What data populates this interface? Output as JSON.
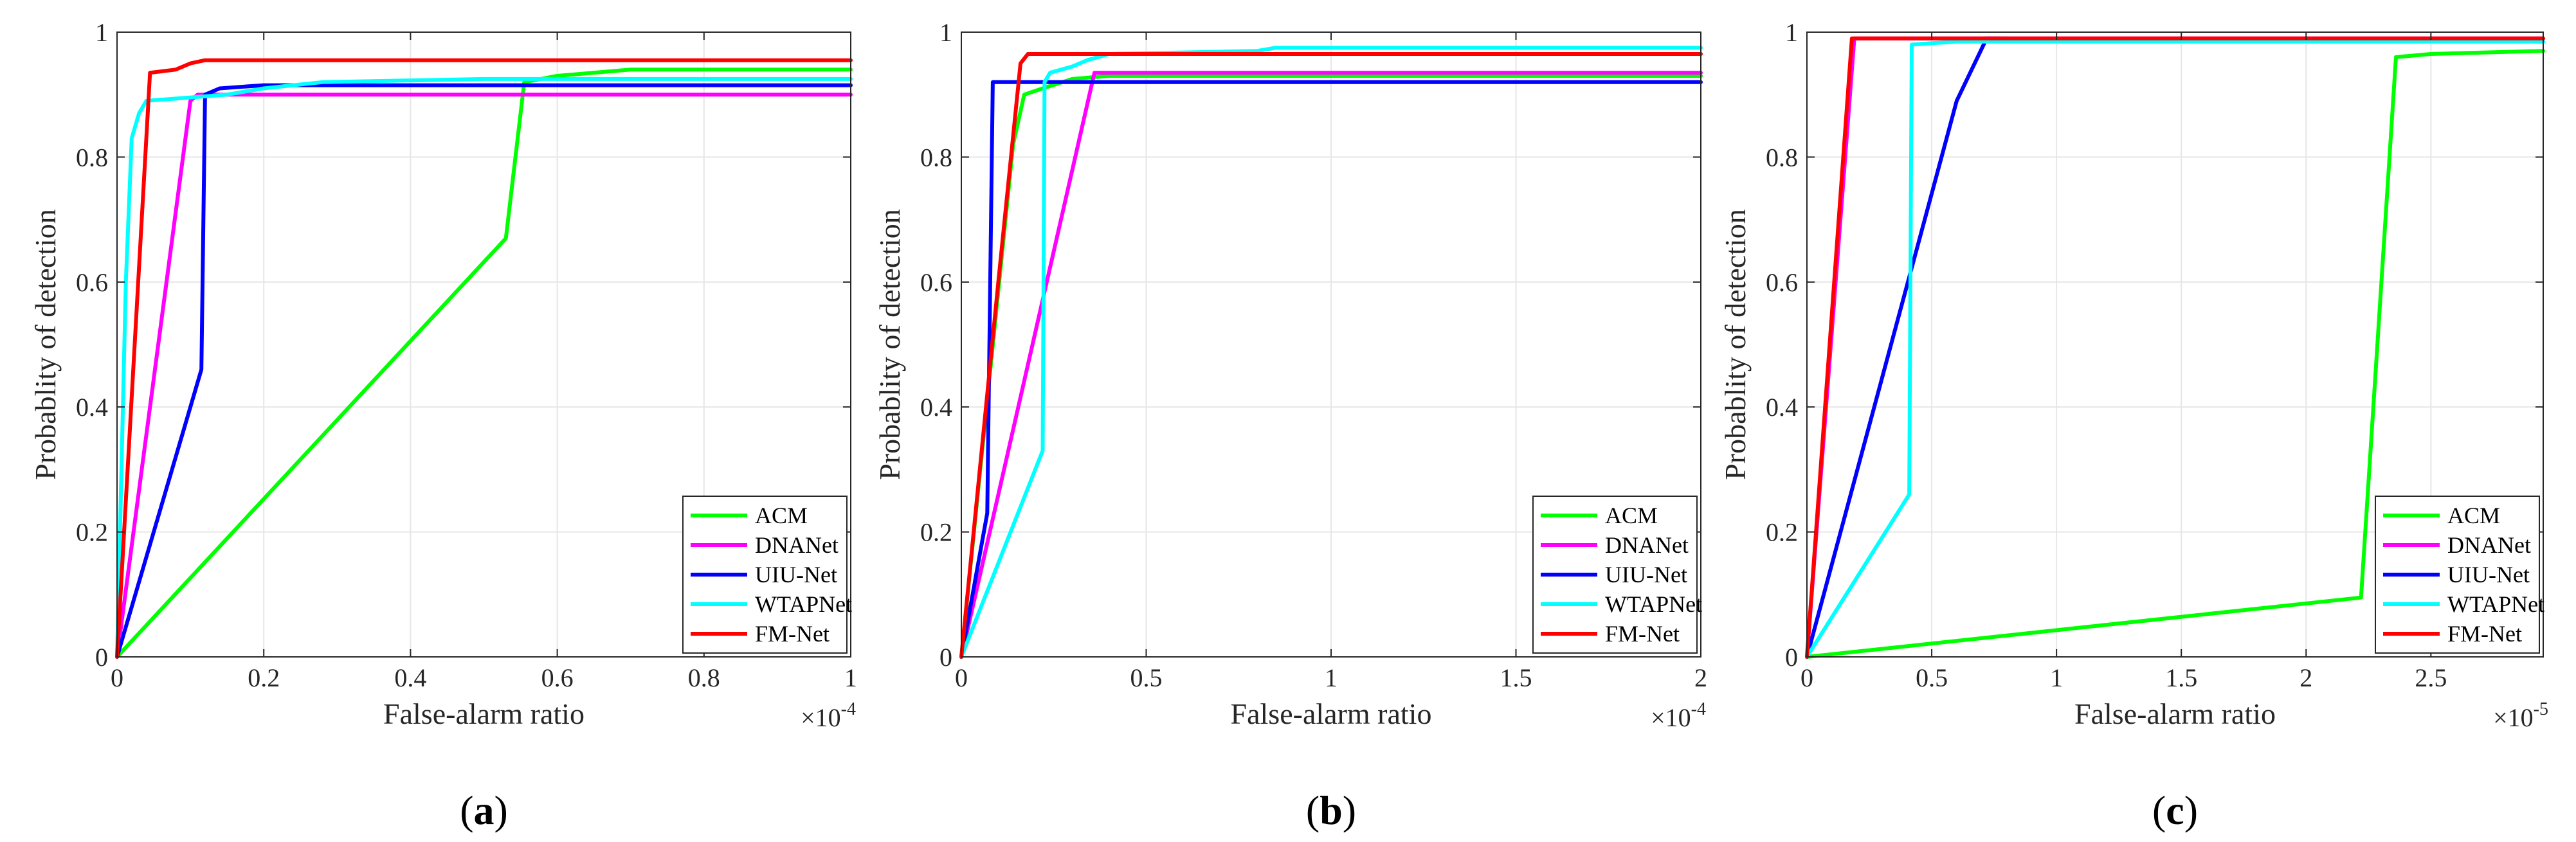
{
  "chart_data": [
    {
      "type": "line",
      "caption": "a",
      "xlabel": "False-alarm ratio",
      "ylabel": "Probablity of detection",
      "xlim": [
        0,
        1
      ],
      "ylim": [
        0,
        1
      ],
      "multiplier": "×10",
      "exponent": "-4",
      "xticks": [
        0,
        0.2,
        0.4,
        0.6,
        0.8,
        1
      ],
      "xtick_labels": [
        "0",
        "0.2",
        "0.4",
        "0.6",
        "0.8",
        "1"
      ],
      "yticks": [
        0,
        0.2,
        0.4,
        0.6,
        0.8,
        1
      ],
      "ytick_labels": [
        "0",
        "0.2",
        "0.4",
        "0.6",
        "0.8",
        "1"
      ],
      "grid": true,
      "legend_position": "bottom-right",
      "series": [
        {
          "name": "ACM",
          "color": "#00ff00",
          "points": [
            [
              0,
              0
            ],
            [
              0.53,
              0.67
            ],
            [
              0.555,
              0.92
            ],
            [
              0.6,
              0.93
            ],
            [
              0.7,
              0.94
            ],
            [
              1,
              0.94
            ]
          ]
        },
        {
          "name": "DNANet",
          "color": "#ff00ff",
          "points": [
            [
              0,
              0
            ],
            [
              0.1,
              0.89
            ],
            [
              0.11,
              0.9
            ],
            [
              1,
              0.9
            ]
          ]
        },
        {
          "name": "UIU-Net",
          "color": "#0000ff",
          "points": [
            [
              0,
              0
            ],
            [
              0.115,
              0.46
            ],
            [
              0.12,
              0.9
            ],
            [
              0.14,
              0.91
            ],
            [
              0.2,
              0.915
            ],
            [
              1,
              0.915
            ]
          ]
        },
        {
          "name": "WTAPNet",
          "color": "#00ffff",
          "points": [
            [
              0,
              0
            ],
            [
              0.007,
              0.35
            ],
            [
              0.012,
              0.6
            ],
            [
              0.02,
              0.83
            ],
            [
              0.03,
              0.87
            ],
            [
              0.04,
              0.89
            ],
            [
              0.15,
              0.9
            ],
            [
              0.2,
              0.91
            ],
            [
              0.28,
              0.92
            ],
            [
              0.5,
              0.925
            ],
            [
              1,
              0.925
            ]
          ]
        },
        {
          "name": "FM-Net",
          "color": "#ff0000",
          "points": [
            [
              0,
              0
            ],
            [
              0.045,
              0.935
            ],
            [
              0.08,
              0.94
            ],
            [
              0.1,
              0.95
            ],
            [
              0.12,
              0.955
            ],
            [
              1,
              0.955
            ]
          ]
        }
      ]
    },
    {
      "type": "line",
      "caption": "b",
      "xlabel": "False-alarm ratio",
      "ylabel": "Probablity of detection",
      "xlim": [
        0,
        2
      ],
      "ylim": [
        0,
        1
      ],
      "multiplier": "×10",
      "exponent": "-4",
      "xticks": [
        0,
        0.5,
        1,
        1.5,
        2
      ],
      "xtick_labels": [
        "0",
        "0.5",
        "1",
        "1.5",
        "2"
      ],
      "yticks": [
        0,
        0.2,
        0.4,
        0.6,
        0.8,
        1
      ],
      "ytick_labels": [
        "0",
        "0.2",
        "0.4",
        "0.6",
        "0.8",
        "1"
      ],
      "grid": true,
      "legend_position": "bottom-right",
      "series": [
        {
          "name": "ACM",
          "color": "#00ff00",
          "points": [
            [
              0,
              0
            ],
            [
              0.14,
              0.82
            ],
            [
              0.17,
              0.9
            ],
            [
              0.22,
              0.91
            ],
            [
              0.3,
              0.925
            ],
            [
              0.4,
              0.93
            ],
            [
              2,
              0.93
            ]
          ]
        },
        {
          "name": "DNANet",
          "color": "#ff00ff",
          "points": [
            [
              0,
              0
            ],
            [
              0.36,
              0.935
            ],
            [
              2,
              0.935
            ]
          ]
        },
        {
          "name": "UIU-Net",
          "color": "#0000ff",
          "points": [
            [
              0,
              0
            ],
            [
              0.07,
              0.23
            ],
            [
              0.085,
              0.92
            ],
            [
              0.2,
              0.92
            ],
            [
              0.4,
              0.92
            ],
            [
              2,
              0.92
            ]
          ]
        },
        {
          "name": "WTAPNet",
          "color": "#00ffff",
          "points": [
            [
              0,
              0
            ],
            [
              0.22,
              0.33
            ],
            [
              0.225,
              0.92
            ],
            [
              0.24,
              0.935
            ],
            [
              0.3,
              0.945
            ],
            [
              0.34,
              0.955
            ],
            [
              0.4,
              0.965
            ],
            [
              0.8,
              0.97
            ],
            [
              0.85,
              0.975
            ],
            [
              2,
              0.975
            ]
          ]
        },
        {
          "name": "FM-Net",
          "color": "#ff0000",
          "points": [
            [
              0,
              0
            ],
            [
              0.1,
              0.6
            ],
            [
              0.16,
              0.95
            ],
            [
              0.18,
              0.965
            ],
            [
              2,
              0.965
            ]
          ]
        }
      ]
    },
    {
      "type": "line",
      "caption": "c",
      "xlabel": "False-alarm ratio",
      "ylabel": "Probablity of detection",
      "xlim": [
        0,
        2.95
      ],
      "ylim": [
        0,
        1
      ],
      "multiplier": "×10",
      "exponent": "-5",
      "xticks": [
        0,
        0.5,
        1,
        1.5,
        2,
        2.5
      ],
      "xtick_labels": [
        "0",
        "0.5",
        "1",
        "1.5",
        "2",
        "2.5"
      ],
      "yticks": [
        0,
        0.2,
        0.4,
        0.6,
        0.8,
        1
      ],
      "ytick_labels": [
        "0",
        "0.2",
        "0.4",
        "0.6",
        "0.8",
        "1"
      ],
      "grid": true,
      "legend_position": "bottom-right",
      "series": [
        {
          "name": "ACM",
          "color": "#00ff00",
          "points": [
            [
              0,
              0
            ],
            [
              2.22,
              0.095
            ],
            [
              2.36,
              0.96
            ],
            [
              2.5,
              0.965
            ],
            [
              2.95,
              0.97
            ]
          ]
        },
        {
          "name": "DNANet",
          "color": "#ff00ff",
          "points": [
            [
              0,
              0
            ],
            [
              0.19,
              0.99
            ],
            [
              2.95,
              0.99
            ]
          ]
        },
        {
          "name": "UIU-Net",
          "color": "#0000ff",
          "points": [
            [
              0,
              0
            ],
            [
              0.6,
              0.89
            ],
            [
              0.72,
              0.99
            ],
            [
              2.95,
              0.985
            ]
          ]
        },
        {
          "name": "WTAPNet",
          "color": "#00ffff",
          "points": [
            [
              0,
              0
            ],
            [
              0.41,
              0.26
            ],
            [
              0.42,
              0.98
            ],
            [
              0.6,
              0.985
            ],
            [
              2.95,
              0.985
            ]
          ]
        },
        {
          "name": "FM-Net",
          "color": "#ff0000",
          "points": [
            [
              0,
              0
            ],
            [
              0.18,
              0.99
            ],
            [
              2.95,
              0.99
            ]
          ]
        }
      ]
    }
  ]
}
